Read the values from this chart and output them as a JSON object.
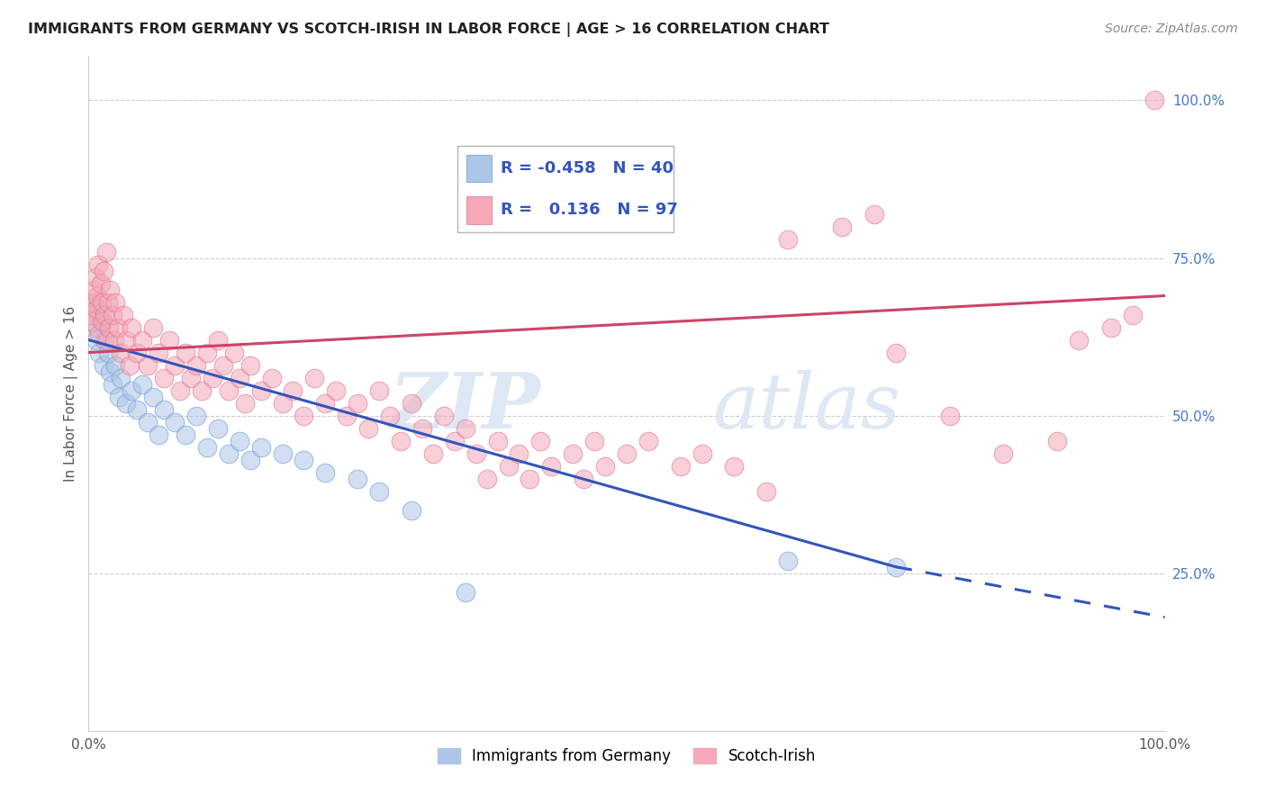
{
  "title": "IMMIGRANTS FROM GERMANY VS SCOTCH-IRISH IN LABOR FORCE | AGE > 16 CORRELATION CHART",
  "source": "Source: ZipAtlas.com",
  "ylabel": "In Labor Force | Age > 16",
  "xlim": [
    0,
    100
  ],
  "ylim": [
    0,
    107
  ],
  "xtick_labels": [
    "0.0%",
    "100.0%"
  ],
  "ytick_labels_right": [
    "25.0%",
    "50.0%",
    "75.0%",
    "100.0%"
  ],
  "ytick_vals_right": [
    25,
    50,
    75,
    100
  ],
  "watermark_zip": "ZIP",
  "watermark_atlas": "atlas",
  "germany_color": "#adc6e8",
  "germany_edge_color": "#6699cc",
  "scotch_color": "#f4a8b8",
  "scotch_edge_color": "#e07090",
  "germany_R": -0.458,
  "germany_N": 40,
  "scotch_R": 0.136,
  "scotch_N": 97,
  "germany_line_color": "#3355bb",
  "scotch_line_color": "#cc4466",
  "germany_line_solid": [
    [
      0,
      62
    ],
    [
      75,
      26
    ]
  ],
  "germany_line_dashed": [
    [
      75,
      26
    ],
    [
      100,
      18
    ]
  ],
  "scotch_line": [
    [
      0,
      60
    ],
    [
      100,
      69
    ]
  ],
  "germany_scatter": [
    [
      0.3,
      66
    ],
    [
      0.5,
      68
    ],
    [
      0.7,
      62
    ],
    [
      0.8,
      64
    ],
    [
      1.0,
      60
    ],
    [
      1.2,
      65
    ],
    [
      1.4,
      58
    ],
    [
      1.5,
      62
    ],
    [
      1.8,
      60
    ],
    [
      2.0,
      57
    ],
    [
      2.2,
      55
    ],
    [
      2.5,
      58
    ],
    [
      2.8,
      53
    ],
    [
      3.0,
      56
    ],
    [
      3.5,
      52
    ],
    [
      4.0,
      54
    ],
    [
      4.5,
      51
    ],
    [
      5.0,
      55
    ],
    [
      5.5,
      49
    ],
    [
      6.0,
      53
    ],
    [
      6.5,
      47
    ],
    [
      7.0,
      51
    ],
    [
      8.0,
      49
    ],
    [
      9.0,
      47
    ],
    [
      10.0,
      50
    ],
    [
      11.0,
      45
    ],
    [
      12.0,
      48
    ],
    [
      13.0,
      44
    ],
    [
      14.0,
      46
    ],
    [
      15.0,
      43
    ],
    [
      16.0,
      45
    ],
    [
      18.0,
      44
    ],
    [
      20.0,
      43
    ],
    [
      22.0,
      41
    ],
    [
      25.0,
      40
    ],
    [
      27.0,
      38
    ],
    [
      30.0,
      35
    ],
    [
      35.0,
      22
    ],
    [
      65.0,
      27
    ],
    [
      75.0,
      26
    ]
  ],
  "scotch_scatter": [
    [
      0.2,
      66
    ],
    [
      0.3,
      68
    ],
    [
      0.4,
      65
    ],
    [
      0.5,
      70
    ],
    [
      0.6,
      72
    ],
    [
      0.7,
      67
    ],
    [
      0.8,
      69
    ],
    [
      0.9,
      74
    ],
    [
      1.0,
      63
    ],
    [
      1.1,
      71
    ],
    [
      1.2,
      68
    ],
    [
      1.3,
      65
    ],
    [
      1.4,
      73
    ],
    [
      1.5,
      66
    ],
    [
      1.6,
      76
    ],
    [
      1.7,
      62
    ],
    [
      1.8,
      68
    ],
    [
      1.9,
      64
    ],
    [
      2.0,
      70
    ],
    [
      2.2,
      66
    ],
    [
      2.4,
      62
    ],
    [
      2.5,
      68
    ],
    [
      2.7,
      64
    ],
    [
      3.0,
      60
    ],
    [
      3.2,
      66
    ],
    [
      3.5,
      62
    ],
    [
      3.8,
      58
    ],
    [
      4.0,
      64
    ],
    [
      4.5,
      60
    ],
    [
      5.0,
      62
    ],
    [
      5.5,
      58
    ],
    [
      6.0,
      64
    ],
    [
      6.5,
      60
    ],
    [
      7.0,
      56
    ],
    [
      7.5,
      62
    ],
    [
      8.0,
      58
    ],
    [
      8.5,
      54
    ],
    [
      9.0,
      60
    ],
    [
      9.5,
      56
    ],
    [
      10.0,
      58
    ],
    [
      10.5,
      54
    ],
    [
      11.0,
      60
    ],
    [
      11.5,
      56
    ],
    [
      12.0,
      62
    ],
    [
      12.5,
      58
    ],
    [
      13.0,
      54
    ],
    [
      13.5,
      60
    ],
    [
      14.0,
      56
    ],
    [
      14.5,
      52
    ],
    [
      15.0,
      58
    ],
    [
      16.0,
      54
    ],
    [
      17.0,
      56
    ],
    [
      18.0,
      52
    ],
    [
      19.0,
      54
    ],
    [
      20.0,
      50
    ],
    [
      21.0,
      56
    ],
    [
      22.0,
      52
    ],
    [
      23.0,
      54
    ],
    [
      24.0,
      50
    ],
    [
      25.0,
      52
    ],
    [
      26.0,
      48
    ],
    [
      27.0,
      54
    ],
    [
      28.0,
      50
    ],
    [
      29.0,
      46
    ],
    [
      30.0,
      52
    ],
    [
      31.0,
      48
    ],
    [
      32.0,
      44
    ],
    [
      33.0,
      50
    ],
    [
      34.0,
      46
    ],
    [
      35.0,
      48
    ],
    [
      36.0,
      44
    ],
    [
      37.0,
      40
    ],
    [
      38.0,
      46
    ],
    [
      39.0,
      42
    ],
    [
      40.0,
      44
    ],
    [
      41.0,
      40
    ],
    [
      42.0,
      46
    ],
    [
      43.0,
      42
    ],
    [
      45.0,
      44
    ],
    [
      46.0,
      40
    ],
    [
      47.0,
      46
    ],
    [
      48.0,
      42
    ],
    [
      50.0,
      44
    ],
    [
      52.0,
      46
    ],
    [
      55.0,
      42
    ],
    [
      57.0,
      44
    ],
    [
      60.0,
      42
    ],
    [
      63.0,
      38
    ],
    [
      65.0,
      78
    ],
    [
      70.0,
      80
    ],
    [
      73.0,
      82
    ],
    [
      75.0,
      60
    ],
    [
      80.0,
      50
    ],
    [
      85.0,
      44
    ],
    [
      90.0,
      46
    ],
    [
      92.0,
      62
    ],
    [
      95.0,
      64
    ],
    [
      97.0,
      66
    ],
    [
      99.0,
      100
    ]
  ]
}
